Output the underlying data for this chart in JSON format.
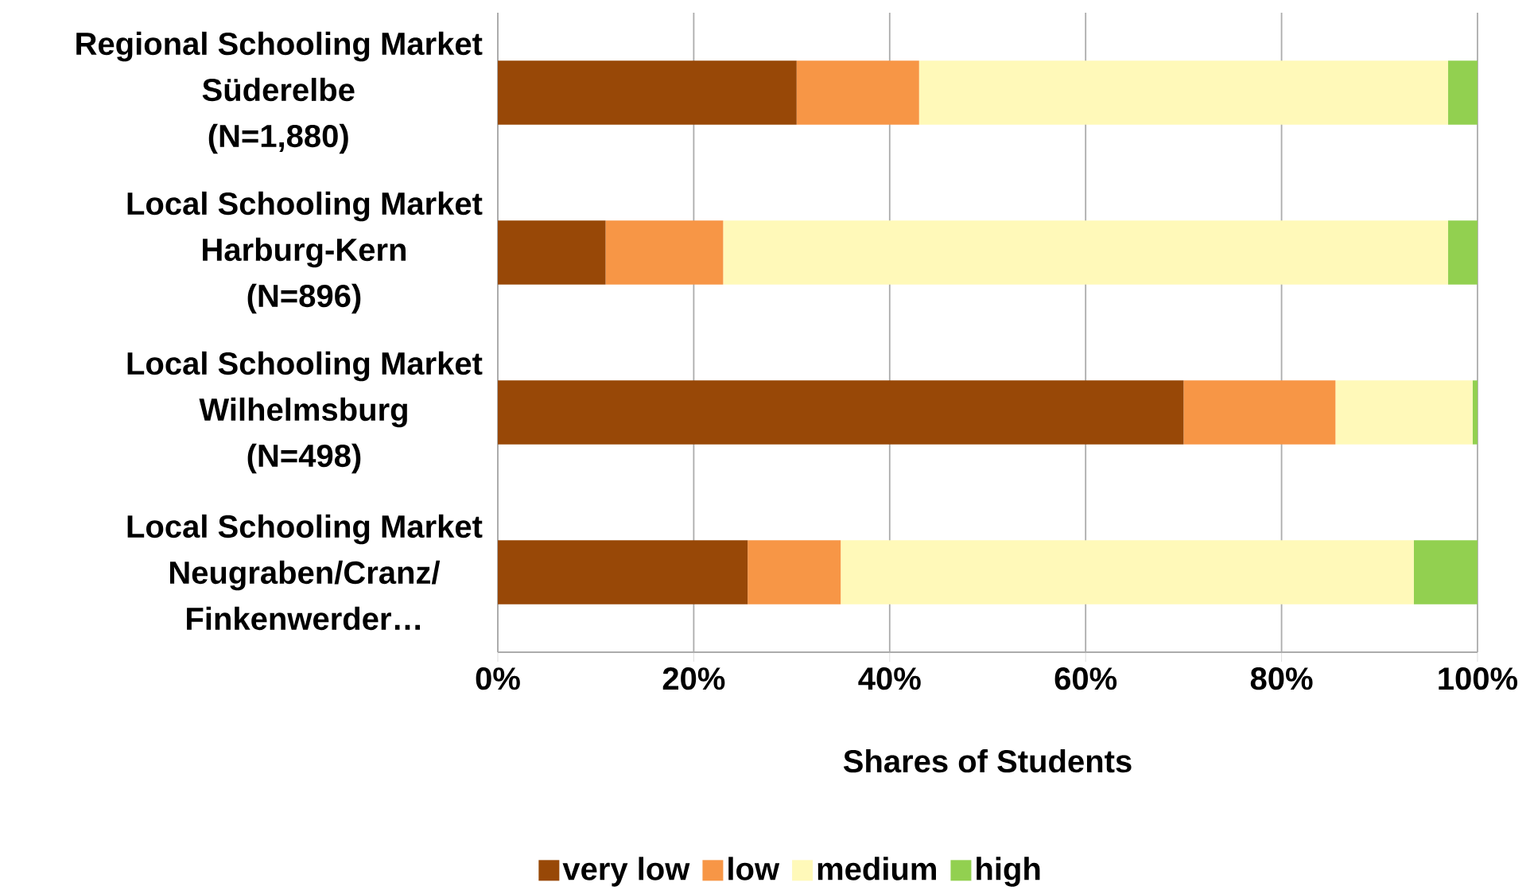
{
  "chart_data": {
    "type": "bar",
    "orientation": "horizontal",
    "stacked": true,
    "categories": [
      "Regional Schooling Market\nSüderelbe\n(N=1,880)",
      "Local Schooling Market\nHarburg-Kern\n(N=896)",
      "Local Schooling Market\nWilhelmsburg\n(N=498)",
      "Local Schooling Market\nNeugraben/Cranz/\nFinkenwerder…"
    ],
    "series": [
      {
        "name": "very low",
        "color": "#984807",
        "values": [
          30.5,
          11,
          70,
          25.5
        ]
      },
      {
        "name": "low",
        "color": "#f79646",
        "values": [
          12.5,
          12,
          15.5,
          9.5
        ]
      },
      {
        "name": "medium",
        "color": "#fff9b9",
        "values": [
          54,
          74,
          14,
          58.5
        ]
      },
      {
        "name": "high",
        "color": "#92d050",
        "values": [
          3,
          3,
          0.5,
          6.5
        ]
      }
    ],
    "xlabel": "Shares of Students",
    "xlim": [
      0,
      100
    ],
    "xticks": [
      {
        "value": 0,
        "label": "0%"
      },
      {
        "value": 20,
        "label": "20%"
      },
      {
        "value": 40,
        "label": "40%"
      },
      {
        "value": 60,
        "label": "60%"
      },
      {
        "value": 80,
        "label": "80%"
      },
      {
        "value": 100,
        "label": "100%"
      }
    ],
    "grid": "x",
    "legend": "bottom"
  }
}
